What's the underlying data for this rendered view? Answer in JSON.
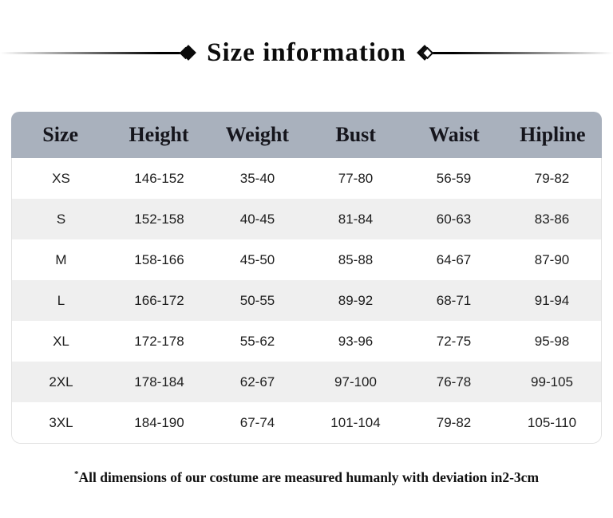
{
  "chart_data": {
    "type": "table",
    "title": "Size information",
    "columns": [
      "Size",
      "Height",
      "Weight",
      "Bust",
      "Waist",
      "Hipline"
    ],
    "rows": [
      [
        "XS",
        "146-152",
        "35-40",
        "77-80",
        "56-59",
        "79-82"
      ],
      [
        "S",
        "152-158",
        "40-45",
        "81-84",
        "60-63",
        "83-86"
      ],
      [
        "M",
        "158-166",
        "45-50",
        "85-88",
        "64-67",
        "87-90"
      ],
      [
        "L",
        "166-172",
        "50-55",
        "89-92",
        "68-71",
        "91-94"
      ],
      [
        "XL",
        "172-178",
        "55-62",
        "93-96",
        "72-75",
        "95-98"
      ],
      [
        "2XL",
        "178-184",
        "62-67",
        "97-100",
        "76-78",
        "99-105"
      ],
      [
        "3XL",
        "184-190",
        "67-74",
        "101-104",
        "79-82",
        "105-110"
      ]
    ],
    "footnote": "*All dimensions of our costume are measured humanly with deviation in2-3cm",
    "header_bg": "#a9b1bd",
    "alt_row_bg": "#efefef",
    "title_color": "#0c0c0c"
  },
  "footnote": {
    "marker": "*",
    "text": "All dimensions of our costume are measured humanly with deviation in2-3cm"
  }
}
